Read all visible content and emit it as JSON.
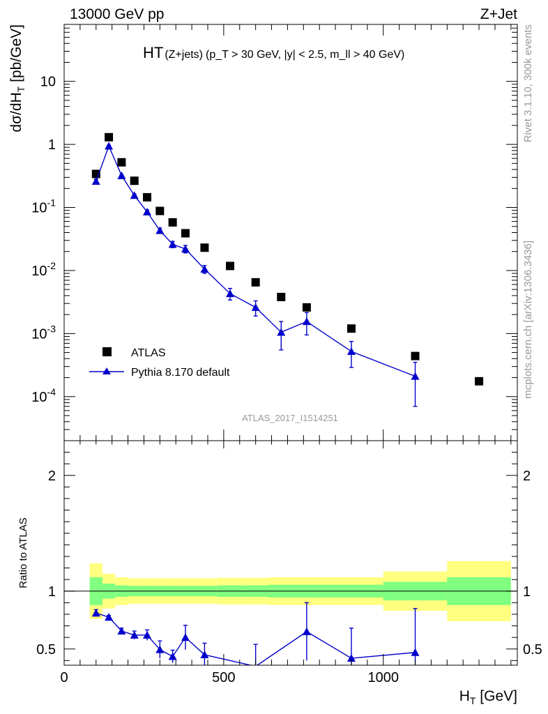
{
  "header": {
    "left": "13000 GeV pp",
    "right": "Z+Jet"
  },
  "title": {
    "main": "HT",
    "paren": "(Z+jets)",
    "cuts": "(p_T > 30 GeV, |y| < 2.5, m_ll > 40 GeV)"
  },
  "side_labels": {
    "rivet": "Rivet 3.1.10,  300k events",
    "mcplots": "mcplots.cern.ch [arXiv:1306.3436]"
  },
  "analysis_id": "ATLAS_2017_I1514251",
  "axes": {
    "top_ylabel": "dσ/dH_T [pb/GeV]",
    "bottom_ylabel": "Ratio to ATLAS",
    "xlabel": "H_T [GeV]",
    "xticks": [
      "0",
      "500",
      "1000"
    ],
    "top_yticks": [
      "10^-4",
      "10^-3",
      "10^-2",
      "10^-1",
      "1",
      "10"
    ],
    "bottom_yticks": [
      "0.5",
      "1",
      "2"
    ]
  },
  "legend": {
    "data_label": "ATLAS",
    "mc_label": "Pythia 8.170 default",
    "placement": "lower-left"
  },
  "colors": {
    "mc": "#0000cc",
    "band_inner": "#80ff80",
    "band_outer": "#ffff80",
    "data": "#000000"
  },
  "chart_data": {
    "type": "scatter",
    "x_unit": "GeV",
    "xlim": [
      0,
      1420
    ],
    "top_ylim": [
      2e-05,
      80
    ],
    "top_yscale": "log",
    "ratio_ylim": [
      0.36,
      2.3
    ],
    "series": [
      {
        "name": "ATLAS",
        "x": [
          100,
          140,
          180,
          220,
          260,
          300,
          340,
          380,
          440,
          520,
          600,
          680,
          760,
          900,
          1100,
          1300
        ],
        "y": [
          0.34,
          1.3,
          0.52,
          0.265,
          0.145,
          0.088,
          0.058,
          0.039,
          0.023,
          0.0118,
          0.0065,
          0.0038,
          0.0026,
          0.0012,
          0.00044,
          0.000175
        ]
      },
      {
        "name": "Pythia 8.170 default",
        "x": [
          100,
          140,
          180,
          220,
          260,
          300,
          340,
          380,
          440,
          520,
          600,
          680,
          760,
          900,
          1100
        ],
        "y": [
          0.26,
          0.94,
          0.32,
          0.155,
          0.085,
          0.043,
          0.026,
          0.022,
          0.0105,
          0.0043,
          0.0026,
          0.00105,
          0.00155,
          0.00052,
          0.00021
        ],
        "y_err": [
          0.02,
          0.03,
          0.012,
          0.008,
          0.006,
          0.004,
          0.003,
          0.003,
          0.0015,
          0.0009,
          0.0007,
          0.0005,
          0.0006,
          0.00023,
          0.00014
        ]
      }
    ],
    "ratio": {
      "x": [
        100,
        140,
        180,
        220,
        260,
        300,
        340,
        380,
        440,
        600,
        760,
        900,
        1100
      ],
      "y": [
        0.81,
        0.775,
        0.655,
        0.62,
        0.62,
        0.495,
        0.435,
        0.6,
        0.45,
        0.35,
        0.65,
        0.42,
        0.47
      ],
      "y_err": [
        0.03,
        0.015,
        0.025,
        0.035,
        0.045,
        0.075,
        0.055,
        0.105,
        0.1,
        0.19,
        0.25,
        0.26,
        0.38
      ]
    },
    "uncertainty_band": {
      "bin_edges": [
        80,
        120,
        160,
        200,
        240,
        280,
        320,
        360,
        400,
        480,
        560,
        640,
        720,
        800,
        1000,
        1200,
        1400
      ],
      "inner_low": [
        0.88,
        0.935,
        0.95,
        0.955,
        0.955,
        0.955,
        0.955,
        0.955,
        0.955,
        0.95,
        0.95,
        0.945,
        0.945,
        0.945,
        0.92,
        0.88
      ],
      "inner_high": [
        1.12,
        1.065,
        1.05,
        1.045,
        1.045,
        1.045,
        1.045,
        1.045,
        1.045,
        1.05,
        1.05,
        1.055,
        1.055,
        1.055,
        1.08,
        1.12
      ],
      "outer_low": [
        0.76,
        0.85,
        0.88,
        0.89,
        0.89,
        0.89,
        0.89,
        0.89,
        0.89,
        0.885,
        0.885,
        0.88,
        0.88,
        0.88,
        0.83,
        0.74
      ],
      "outer_high": [
        1.24,
        1.15,
        1.12,
        1.11,
        1.11,
        1.11,
        1.11,
        1.11,
        1.11,
        1.115,
        1.115,
        1.12,
        1.12,
        1.12,
        1.17,
        1.26
      ]
    }
  }
}
